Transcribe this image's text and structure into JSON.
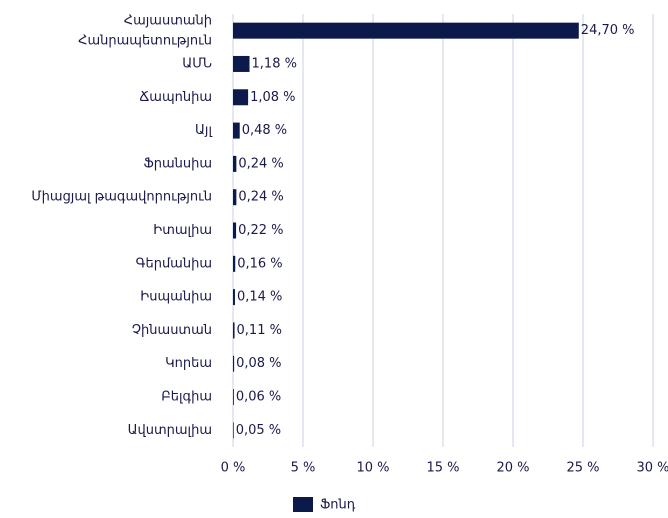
{
  "chart_data": {
    "type": "bar",
    "orientation": "horizontal",
    "categories": [
      "Հայաստանի Հանրապետություն",
      "ԱՄՆ",
      "Ճապոնիա",
      "Այլ",
      "Ֆրանսիա",
      "Միացյալ թագավորություն",
      "Իտալիա",
      "Գերմանիա",
      "Իսպանիա",
      "Չինաստան",
      "Կորեա",
      "Բելգիա",
      "Ավստրալիա"
    ],
    "series": [
      {
        "name": "Ֆոնդ",
        "color": "#0c1a4b",
        "values": [
          24.7,
          1.18,
          1.08,
          0.48,
          0.24,
          0.24,
          0.22,
          0.16,
          0.14,
          0.11,
          0.08,
          0.06,
          0.05
        ],
        "value_labels": [
          "24,70 %",
          "1,18 %",
          "1,08 %",
          "0,48 %",
          "0,24 %",
          "0,24 %",
          "0,22 %",
          "0,16 %",
          "0,14 %",
          "0,11 %",
          "0,08 %",
          "0,06 %",
          "0,05 %"
        ]
      }
    ],
    "xlim": [
      0,
      30
    ],
    "xticks": [
      {
        "value": 0,
        "label": "0 %"
      },
      {
        "value": 5,
        "label": "5 %"
      },
      {
        "value": 10,
        "label": "10 %"
      },
      {
        "value": 15,
        "label": "15 %"
      },
      {
        "value": 20,
        "label": "20 %"
      },
      {
        "value": 25,
        "label": "25 %"
      },
      {
        "value": 30,
        "label": "30 %"
      }
    ],
    "grid": true,
    "legend": "bottom"
  }
}
